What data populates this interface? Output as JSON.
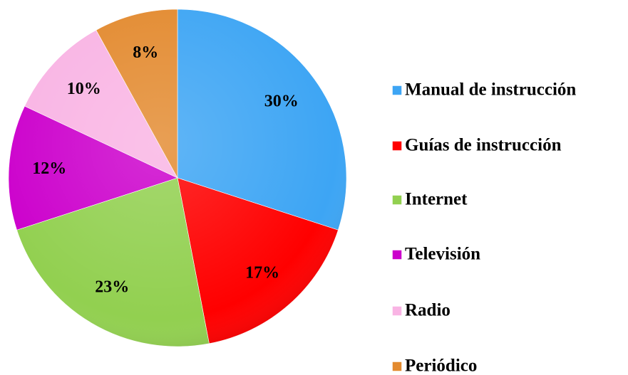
{
  "chart_data": {
    "type": "pie",
    "categories": [
      "Manual de instrucción",
      "Guías de instrucción",
      "Internet",
      "Televisión",
      "Radio",
      "Periódico"
    ],
    "values": [
      30,
      17,
      23,
      12,
      10,
      8
    ],
    "value_labels": [
      "30%",
      "17%",
      "23%",
      "12%",
      "10%",
      "8%"
    ],
    "colors": [
      "#3da5f4",
      "#ff0000",
      "#92d050",
      "#cc00cc",
      "#f9b4e4",
      "#e38a2f"
    ],
    "legend": "right"
  }
}
